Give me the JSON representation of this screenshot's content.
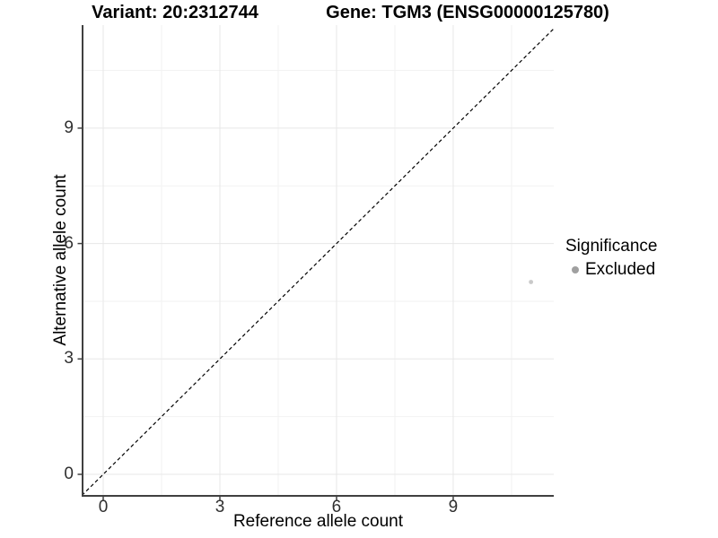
{
  "header": {
    "variant_title": "Variant: 20:2312744",
    "gene_title": "Gene: TGM3 (ENSG00000125780)"
  },
  "axes": {
    "x": {
      "title": "Reference allele count",
      "ticks": [
        "0",
        "3",
        "6",
        "9"
      ]
    },
    "y": {
      "title": "Alternative allele count",
      "ticks": [
        "0",
        "3",
        "6",
        "9"
      ]
    }
  },
  "legend": {
    "title": "Significance",
    "items": [
      {
        "label": "Excluded",
        "color": "#a0a0a0"
      }
    ]
  },
  "chart_data": {
    "type": "scatter",
    "xlabel": "Reference allele count",
    "ylabel": "Alternative allele count",
    "xlim": [
      -0.55,
      11.65
    ],
    "ylim": [
      -0.55,
      11.7
    ],
    "x_ticks": [
      0,
      3,
      6,
      9
    ],
    "y_ticks": [
      0,
      3,
      6,
      9
    ],
    "x_minor_gridlines": [
      1.5,
      4.5,
      7.5,
      10.5
    ],
    "y_minor_gridlines": [
      1.5,
      4.5,
      7.5,
      10.5
    ],
    "grid": true,
    "legend_position": "right",
    "series": [
      {
        "name": "Excluded",
        "color": "#c9c9c9",
        "points": [
          {
            "x": 11,
            "y": 5
          }
        ]
      }
    ],
    "reference_line": {
      "type": "identity",
      "slope": 1,
      "intercept": 0,
      "style": "dashed",
      "color": "#000000"
    }
  },
  "style": {
    "background": "#ffffff",
    "grid_major": "#e7e7e7",
    "grid_minor": "#f2f2f2",
    "axis_line": "#404040",
    "tick_text": "#303030",
    "dashed_line": "#000000",
    "point_color": "#c9c9c9",
    "legend_dot_color": "#a0a0a0"
  }
}
